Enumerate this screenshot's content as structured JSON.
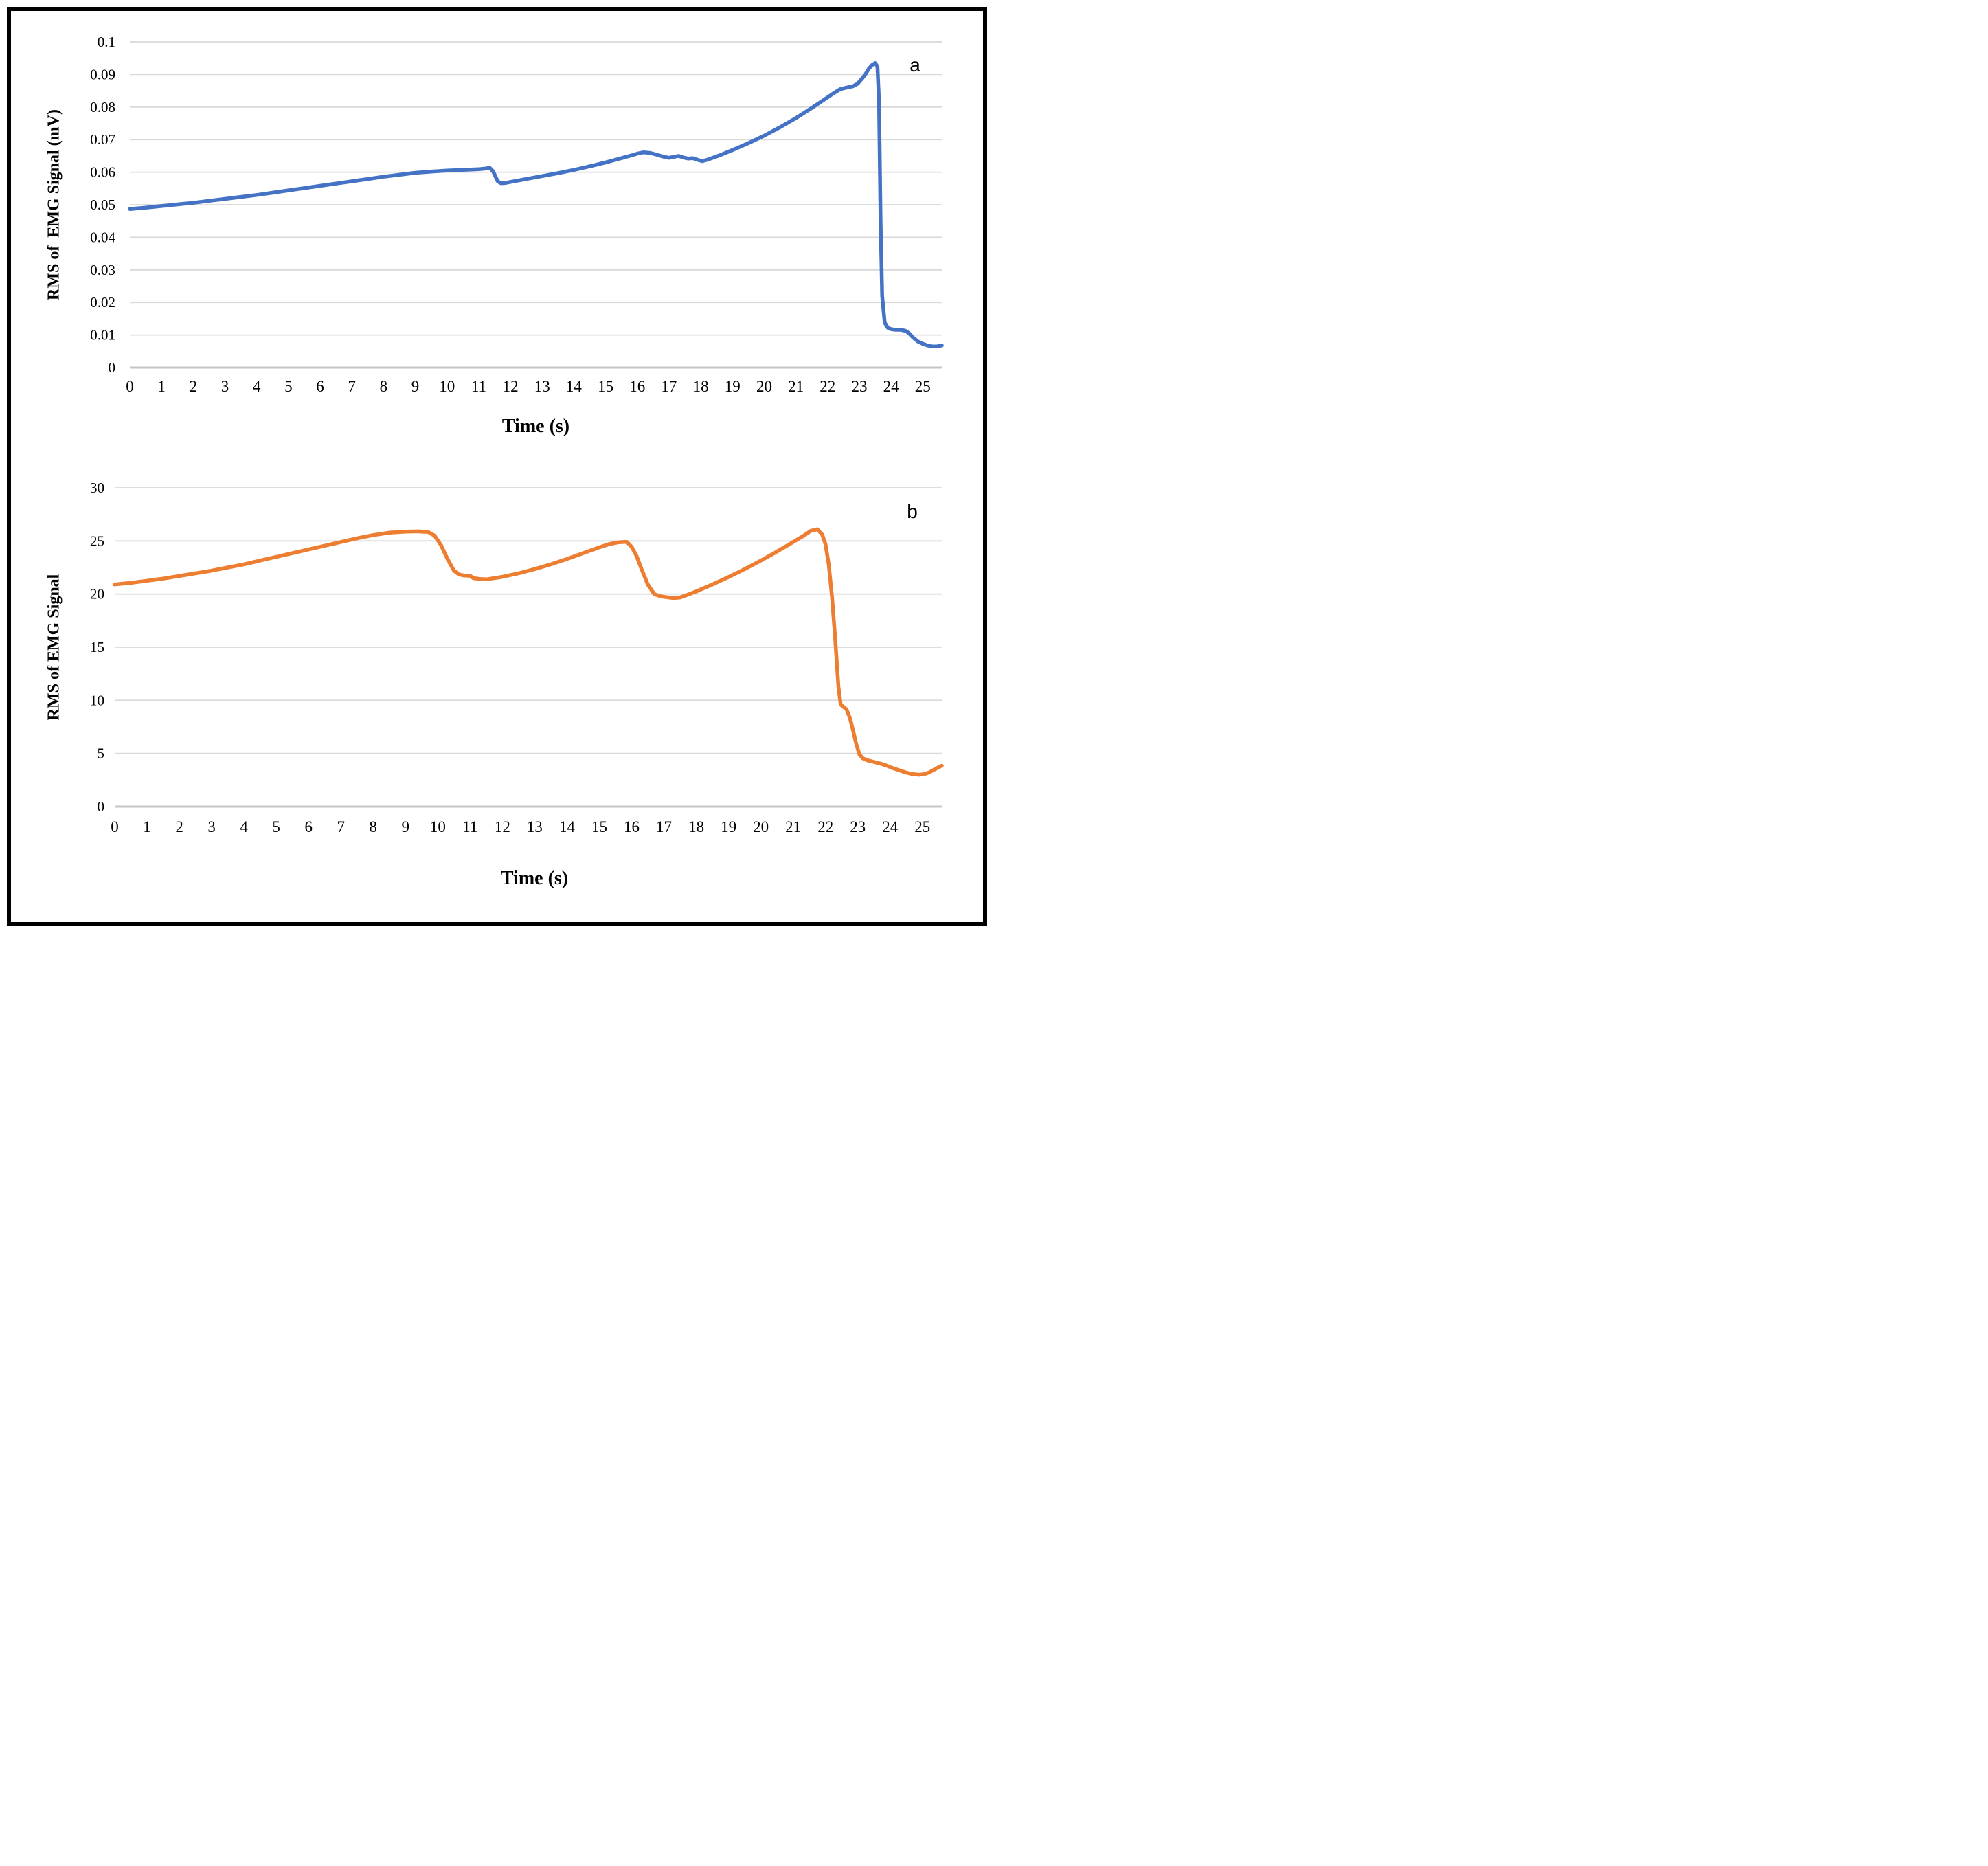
{
  "figure": {
    "background": "#FFFFFF",
    "border_color": "#000000"
  },
  "colors": {
    "series_a": "#4472C4",
    "series_b": "#ED7D31",
    "gridline": "#D9D9D9",
    "axis_line": "#C6C6C6",
    "text": "#000000"
  },
  "chart_data": [
    {
      "id": "a",
      "type": "line",
      "panel_label": "a",
      "xlabel": "Time (s)",
      "ylabel": "RMS of  EMG Signal (mV)",
      "legend": "none",
      "grid": true,
      "xlim": [
        0,
        25.6
      ],
      "ylim": [
        0,
        0.1
      ],
      "x_ticks": [
        0,
        1,
        2,
        3,
        4,
        5,
        6,
        7,
        8,
        9,
        10,
        11,
        12,
        13,
        14,
        15,
        16,
        17,
        18,
        19,
        20,
        21,
        22,
        23,
        24,
        25
      ],
      "y_ticks": [
        0,
        0.01,
        0.02,
        0.03,
        0.04,
        0.05,
        0.06,
        0.07,
        0.08,
        0.09,
        0.1
      ],
      "y_tick_labels": [
        "0",
        "0.01",
        "0.02",
        "0.03",
        "0.04",
        "0.05",
        "0.06",
        "0.07",
        "0.08",
        "0.09",
        "0.1"
      ],
      "line_color": "#4472C4",
      "points": [
        [
          0,
          0.0487
        ],
        [
          0.5,
          0.0491
        ],
        [
          1,
          0.0496
        ],
        [
          1.5,
          0.0501
        ],
        [
          2,
          0.0506
        ],
        [
          2.5,
          0.0512
        ],
        [
          3,
          0.0518
        ],
        [
          3.5,
          0.0524
        ],
        [
          4,
          0.053
        ],
        [
          4.5,
          0.0537
        ],
        [
          5,
          0.0544
        ],
        [
          5.5,
          0.0551
        ],
        [
          6,
          0.0558
        ],
        [
          6.5,
          0.0565
        ],
        [
          7,
          0.0572
        ],
        [
          7.5,
          0.0579
        ],
        [
          8,
          0.0586
        ],
        [
          8.5,
          0.0592
        ],
        [
          9,
          0.0598
        ],
        [
          9.5,
          0.0602
        ],
        [
          10,
          0.0605
        ],
        [
          10.5,
          0.0607
        ],
        [
          11,
          0.0609
        ],
        [
          11.2,
          0.0611
        ],
        [
          11.35,
          0.0613
        ],
        [
          11.45,
          0.0603
        ],
        [
          11.6,
          0.0572
        ],
        [
          11.7,
          0.0566
        ],
        [
          11.85,
          0.0567
        ],
        [
          12,
          0.057
        ],
        [
          12.5,
          0.0579
        ],
        [
          13,
          0.0588
        ],
        [
          13.5,
          0.0597
        ],
        [
          14,
          0.0607
        ],
        [
          14.5,
          0.0618
        ],
        [
          15,
          0.063
        ],
        [
          15.5,
          0.0643
        ],
        [
          15.8,
          0.0651
        ],
        [
          16,
          0.0657
        ],
        [
          16.2,
          0.0661
        ],
        [
          16.4,
          0.0659
        ],
        [
          16.6,
          0.0654
        ],
        [
          16.8,
          0.0648
        ],
        [
          17,
          0.0644
        ],
        [
          17.15,
          0.0647
        ],
        [
          17.3,
          0.065
        ],
        [
          17.45,
          0.0645
        ],
        [
          17.6,
          0.0642
        ],
        [
          17.75,
          0.0643
        ],
        [
          17.9,
          0.0638
        ],
        [
          18.05,
          0.0634
        ],
        [
          18.2,
          0.0638
        ],
        [
          18.4,
          0.0645
        ],
        [
          18.6,
          0.0652
        ],
        [
          18.8,
          0.066
        ],
        [
          19,
          0.0668
        ],
        [
          19.5,
          0.0689
        ],
        [
          20,
          0.0712
        ],
        [
          20.5,
          0.0738
        ],
        [
          21,
          0.0766
        ],
        [
          21.5,
          0.0797
        ],
        [
          22,
          0.083
        ],
        [
          22.2,
          0.0843
        ],
        [
          22.4,
          0.0855
        ],
        [
          22.6,
          0.086
        ],
        [
          22.8,
          0.0864
        ],
        [
          22.95,
          0.0872
        ],
        [
          23.1,
          0.0889
        ],
        [
          23.2,
          0.0902
        ],
        [
          23.3,
          0.0918
        ],
        [
          23.4,
          0.0929
        ],
        [
          23.5,
          0.0935
        ],
        [
          23.57,
          0.0925
        ],
        [
          23.62,
          0.082
        ],
        [
          23.67,
          0.045
        ],
        [
          23.72,
          0.022
        ],
        [
          23.8,
          0.0138
        ],
        [
          23.9,
          0.0122
        ],
        [
          24,
          0.0118
        ],
        [
          24.15,
          0.0116
        ],
        [
          24.3,
          0.0116
        ],
        [
          24.45,
          0.0113
        ],
        [
          24.55,
          0.0107
        ],
        [
          24.7,
          0.0092
        ],
        [
          24.85,
          0.008
        ],
        [
          25,
          0.0073
        ],
        [
          25.15,
          0.0068
        ],
        [
          25.3,
          0.0065
        ],
        [
          25.45,
          0.0065
        ],
        [
          25.6,
          0.0068
        ]
      ]
    },
    {
      "id": "b",
      "type": "line",
      "panel_label": "b",
      "xlabel": "Time (s)",
      "ylabel": "RMS of EMG Signal",
      "legend": "none",
      "grid": true,
      "xlim": [
        0,
        25.6
      ],
      "ylim": [
        0,
        30
      ],
      "x_ticks": [
        0,
        1,
        2,
        3,
        4,
        5,
        6,
        7,
        8,
        9,
        10,
        11,
        12,
        13,
        14,
        15,
        16,
        17,
        18,
        19,
        20,
        21,
        22,
        23,
        24,
        25
      ],
      "y_ticks": [
        0,
        5,
        10,
        15,
        20,
        25,
        30
      ],
      "y_tick_labels": [
        "0",
        "5",
        "10",
        "15",
        "20",
        "25",
        "30"
      ],
      "line_color": "#ED7D31",
      "points": [
        [
          0,
          20.9
        ],
        [
          0.5,
          21.05
        ],
        [
          1,
          21.25
        ],
        [
          1.5,
          21.45
        ],
        [
          2,
          21.7
        ],
        [
          2.5,
          21.95
        ],
        [
          3,
          22.2
        ],
        [
          3.5,
          22.5
        ],
        [
          4,
          22.8
        ],
        [
          4.5,
          23.15
        ],
        [
          5,
          23.5
        ],
        [
          5.5,
          23.85
        ],
        [
          6,
          24.2
        ],
        [
          6.5,
          24.55
        ],
        [
          7,
          24.9
        ],
        [
          7.5,
          25.25
        ],
        [
          8,
          25.55
        ],
        [
          8.5,
          25.78
        ],
        [
          9,
          25.88
        ],
        [
          9.4,
          25.9
        ],
        [
          9.7,
          25.85
        ],
        [
          9.9,
          25.5
        ],
        [
          10.1,
          24.6
        ],
        [
          10.3,
          23.3
        ],
        [
          10.5,
          22.2
        ],
        [
          10.65,
          21.85
        ],
        [
          10.8,
          21.75
        ],
        [
          11,
          21.72
        ],
        [
          11.1,
          21.5
        ],
        [
          11.3,
          21.42
        ],
        [
          11.5,
          21.38
        ],
        [
          11.7,
          21.48
        ],
        [
          12,
          21.62
        ],
        [
          12.5,
          21.95
        ],
        [
          13,
          22.35
        ],
        [
          13.5,
          22.8
        ],
        [
          14,
          23.3
        ],
        [
          14.5,
          23.85
        ],
        [
          15,
          24.4
        ],
        [
          15.3,
          24.7
        ],
        [
          15.6,
          24.88
        ],
        [
          15.85,
          24.92
        ],
        [
          16,
          24.45
        ],
        [
          16.15,
          23.6
        ],
        [
          16.3,
          22.4
        ],
        [
          16.5,
          20.9
        ],
        [
          16.7,
          20
        ],
        [
          16.9,
          19.78
        ],
        [
          17.1,
          19.7
        ],
        [
          17.3,
          19.62
        ],
        [
          17.5,
          19.68
        ],
        [
          17.75,
          19.95
        ],
        [
          18,
          20.25
        ],
        [
          18.5,
          20.9
        ],
        [
          19,
          21.6
        ],
        [
          19.5,
          22.35
        ],
        [
          20,
          23.15
        ],
        [
          20.5,
          24
        ],
        [
          21,
          24.9
        ],
        [
          21.3,
          25.45
        ],
        [
          21.55,
          25.95
        ],
        [
          21.75,
          26.1
        ],
        [
          21.9,
          25.6
        ],
        [
          22,
          24.7
        ],
        [
          22.1,
          22.8
        ],
        [
          22.2,
          19.8
        ],
        [
          22.3,
          15.8
        ],
        [
          22.4,
          11.3
        ],
        [
          22.47,
          9.6
        ],
        [
          22.55,
          9.4
        ],
        [
          22.65,
          9.15
        ],
        [
          22.75,
          8.4
        ],
        [
          22.85,
          7.2
        ],
        [
          22.95,
          5.9
        ],
        [
          23.05,
          4.9
        ],
        [
          23.15,
          4.55
        ],
        [
          23.3,
          4.35
        ],
        [
          23.5,
          4.2
        ],
        [
          23.7,
          4.05
        ],
        [
          23.9,
          3.85
        ],
        [
          24.1,
          3.6
        ],
        [
          24.3,
          3.4
        ],
        [
          24.5,
          3.2
        ],
        [
          24.7,
          3.05
        ],
        [
          24.9,
          3
        ],
        [
          25.05,
          3.05
        ],
        [
          25.2,
          3.2
        ],
        [
          25.35,
          3.45
        ],
        [
          25.5,
          3.7
        ],
        [
          25.6,
          3.85
        ]
      ]
    }
  ]
}
